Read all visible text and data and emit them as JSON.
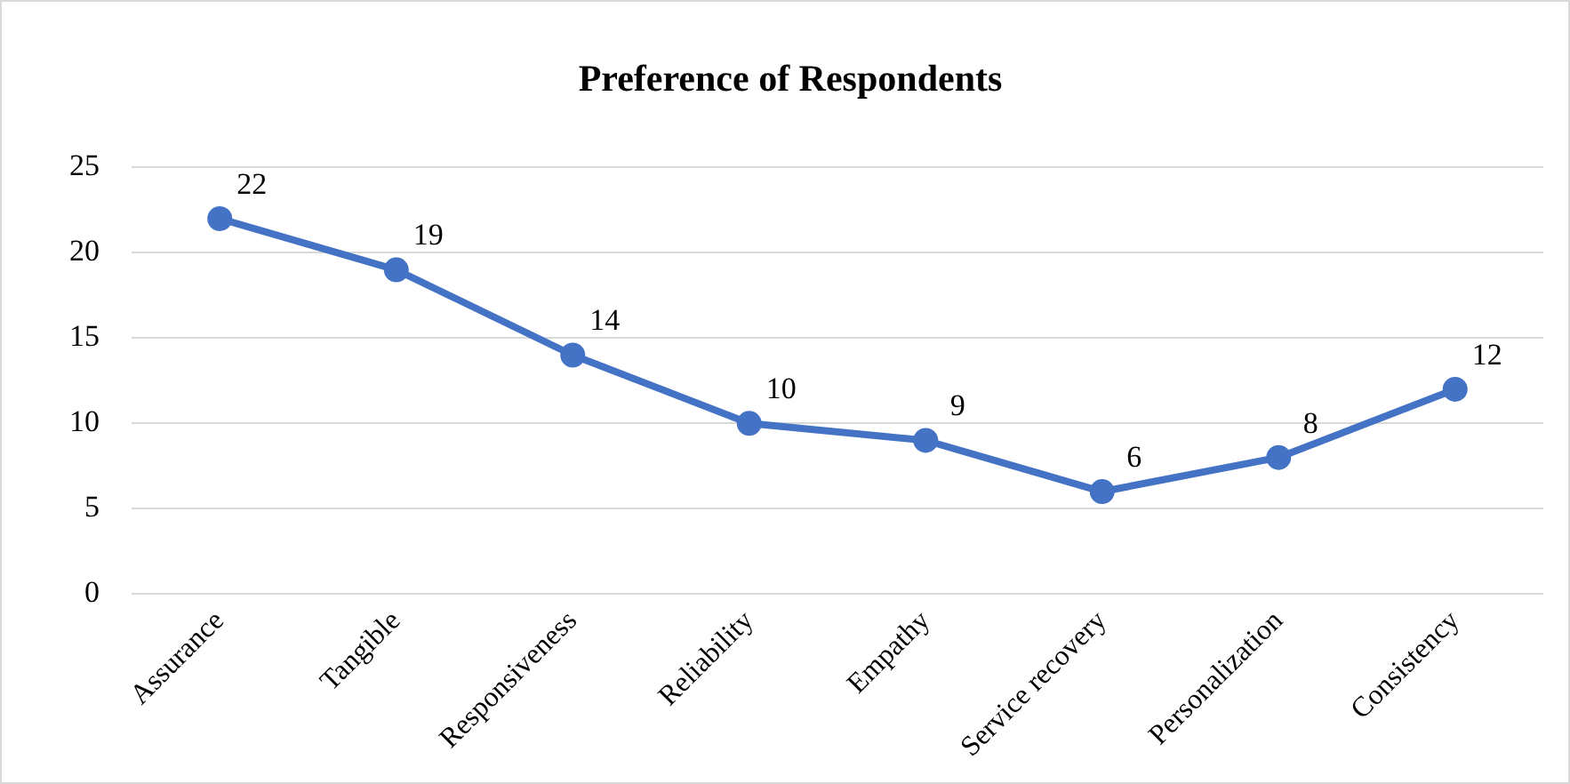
{
  "chart_data": {
    "type": "line",
    "title": "Preference of Respondents",
    "categories": [
      "Assurance",
      "Tangible",
      "Responsiveness",
      "Reliability",
      "Empathy",
      "Service recovery",
      "Personalization",
      "Consistency"
    ],
    "series": [
      {
        "color": "#4472c4",
        "values": [
          22,
          19,
          14,
          10,
          9,
          6,
          8,
          12
        ]
      }
    ],
    "ylim": [
      0,
      25
    ],
    "yticks": [
      0,
      5,
      10,
      15,
      20,
      25
    ],
    "grid": "y",
    "legend": false,
    "marker": "circle",
    "line_style": "solid",
    "data_labels": true
  }
}
